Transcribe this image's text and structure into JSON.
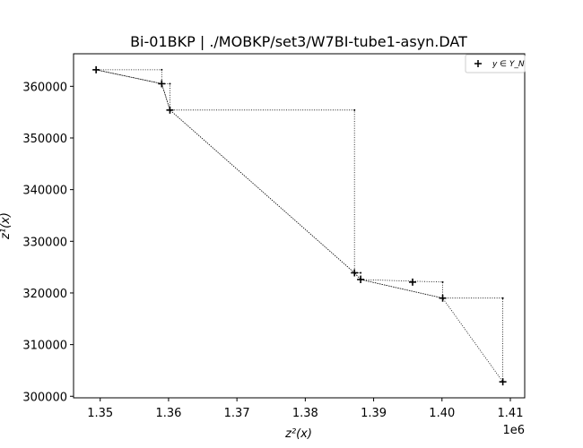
{
  "chart_data": {
    "type": "scatter",
    "title": "Bi-01BKP | ./MOBKP/set3/W7BI-tube1-asyn.DAT",
    "xlabel": "z²(x)",
    "ylabel": "z¹(x)",
    "x_offset_label": "1e6",
    "xlim": [
      1.3461,
      1.4121
    ],
    "ylim": [
      299700,
      366300
    ],
    "xticks": [
      1.35,
      1.36,
      1.37,
      1.38,
      1.39,
      1.4,
      1.41
    ],
    "xtick_labels": [
      "1.35",
      "1.36",
      "1.37",
      "1.38",
      "1.39",
      "1.40",
      "1.41"
    ],
    "yticks": [
      300000,
      310000,
      320000,
      330000,
      340000,
      350000,
      360000
    ],
    "ytick_labels": [
      "300000",
      "310000",
      "320000",
      "330000",
      "340000",
      "350000",
      "360000"
    ],
    "legend": {
      "position": "top-right",
      "entries": [
        "y ∈ Y_N"
      ]
    },
    "series": [
      {
        "name": "y ∈ Y_N",
        "marker": "+",
        "color": "#000000",
        "points": [
          [
            1.3494,
            363200
          ],
          [
            1.359,
            360500
          ],
          [
            1.3602,
            355400
          ],
          [
            1.3872,
            323900
          ],
          [
            1.3881,
            322600
          ],
          [
            1.3957,
            322100
          ],
          [
            1.4001,
            319000
          ],
          [
            1.4089,
            302800
          ]
        ]
      }
    ],
    "connector_line": {
      "style": "dotted",
      "color": "#000000",
      "points": [
        [
          1.3494,
          363200
        ],
        [
          1.359,
          363200
        ],
        [
          1.359,
          360500
        ],
        [
          1.3494,
          363200
        ],
        [
          1.359,
          360500
        ],
        [
          1.3602,
          360500
        ],
        [
          1.3602,
          355400
        ],
        [
          1.359,
          360500
        ],
        [
          1.3602,
          355400
        ],
        [
          1.3872,
          355400
        ],
        [
          1.3872,
          323900
        ],
        [
          1.3602,
          355400
        ],
        [
          1.3872,
          323900
        ],
        [
          1.3881,
          323900
        ],
        [
          1.3881,
          322600
        ],
        [
          1.3872,
          323900
        ],
        [
          1.3881,
          322600
        ],
        [
          1.4001,
          322100
        ],
        [
          1.4001,
          319000
        ],
        [
          1.3881,
          322600
        ],
        [
          1.4001,
          319000
        ],
        [
          1.4089,
          319000
        ],
        [
          1.4089,
          302800
        ],
        [
          1.4001,
          319000
        ]
      ]
    },
    "corner_dots": [
      [
        1.359,
        363200
      ],
      [
        1.3602,
        360500
      ],
      [
        1.3872,
        355400
      ],
      [
        1.3881,
        323900
      ],
      [
        1.4001,
        322100
      ],
      [
        1.4089,
        319000
      ]
    ]
  }
}
